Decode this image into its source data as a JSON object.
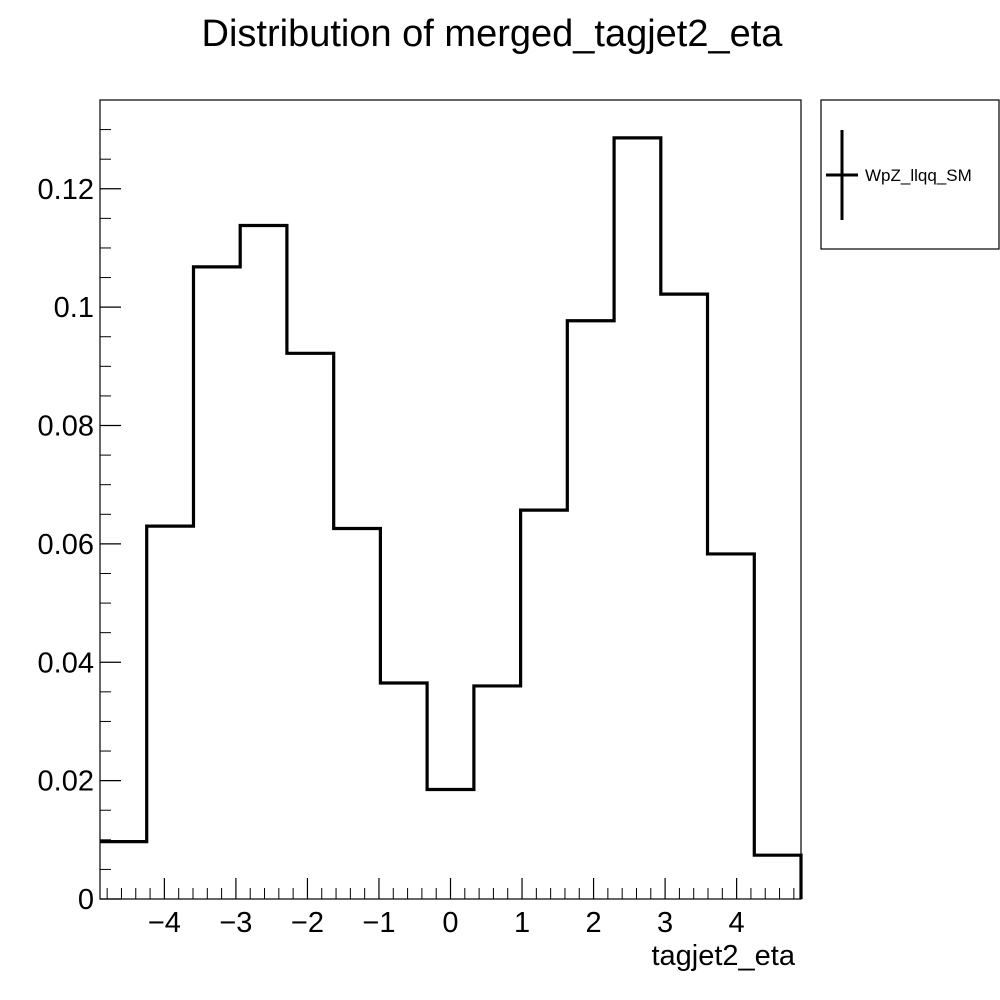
{
  "chart_data": {
    "type": "step",
    "title": "Distribution of merged_tagjet2_eta",
    "xlabel": "tagjet2_eta",
    "ylabel": "",
    "xlim": [
      -4.9,
      4.9
    ],
    "ylim": [
      0,
      0.135
    ],
    "x_ticks": [
      -4,
      -3,
      -2,
      -1,
      0,
      1,
      2,
      3,
      4
    ],
    "x_tick_labels": [
      "−4",
      "−3",
      "−2",
      "−1",
      "0",
      "1",
      "2",
      "3",
      "4"
    ],
    "y_ticks": [
      0,
      0.02,
      0.04,
      0.06,
      0.08,
      0.1,
      0.12
    ],
    "y_tick_labels": [
      "0",
      "0.02",
      "0.04",
      "0.06",
      "0.08",
      "0.1",
      "0.12"
    ],
    "bin_edges": [
      -4.9,
      -4.247,
      -3.593,
      -2.94,
      -2.287,
      -1.633,
      -0.98,
      -0.327,
      0.327,
      0.98,
      1.633,
      2.287,
      2.94,
      3.593,
      4.247,
      4.9
    ],
    "series": [
      {
        "name": "WpZ_llqq_SM",
        "values": [
          0.0097,
          0.063,
          0.1068,
          0.1138,
          0.0922,
          0.0626,
          0.0365,
          0.0185,
          0.036,
          0.0657,
          0.0977,
          0.1286,
          0.1022,
          0.0583,
          0.0074
        ],
        "color": "#000000"
      }
    ],
    "legend": {
      "position": "outside-top-right",
      "entries": [
        "WpZ_llqq_SM"
      ]
    },
    "grid": false
  }
}
